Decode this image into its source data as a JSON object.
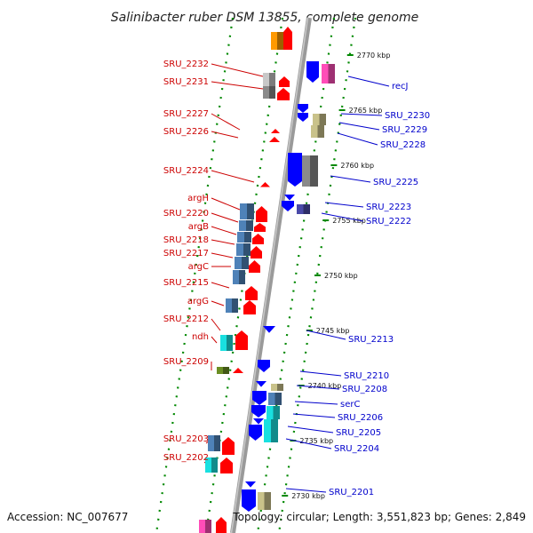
{
  "header": {
    "title": "Salinibacter ruber DSM 13855, complete genome"
  },
  "footer": {
    "accession": "Accession: NC_007677",
    "summary": "Topology: circular; Length: 3,551,823 bp; Genes: 2,849"
  },
  "colors": {
    "forward_label": "#cc0000",
    "reverse_label": "#0000cc",
    "backbone": "#999999",
    "tick": "#008800"
  },
  "kbp_markers": [
    {
      "text": "2770 kbp",
      "kbp": 2770
    },
    {
      "text": "2765 kbp",
      "kbp": 2765
    },
    {
      "text": "2760 kbp",
      "kbp": 2760
    },
    {
      "text": "2755 kbp",
      "kbp": 2755
    },
    {
      "text": "2750 kbp",
      "kbp": 2750
    },
    {
      "text": "2745 kbp",
      "kbp": 2745
    },
    {
      "text": "2740 kbp",
      "kbp": 2740
    },
    {
      "text": "2735 kbp",
      "kbp": 2735
    },
    {
      "text": "2730 kbp",
      "kbp": 2730
    }
  ],
  "forward_genes": [
    {
      "label": "SRU_2232"
    },
    {
      "label": "SRU_2231"
    },
    {
      "label": "SRU_2227"
    },
    {
      "label": "SRU_2226"
    },
    {
      "label": "SRU_2224"
    },
    {
      "label": "argH"
    },
    {
      "label": "SRU_2220"
    },
    {
      "label": "argB"
    },
    {
      "label": "SRU_2218"
    },
    {
      "label": "SRU_2217"
    },
    {
      "label": "argC"
    },
    {
      "label": "SRU_2215"
    },
    {
      "label": "argG"
    },
    {
      "label": "SRU_2212"
    },
    {
      "label": "ndh"
    },
    {
      "label": "SRU_2209"
    },
    {
      "label": "SRU_2203"
    },
    {
      "label": "SRU_2202"
    }
  ],
  "reverse_genes": [
    {
      "label": "recJ"
    },
    {
      "label": "SRU_2230"
    },
    {
      "label": "SRU_2229"
    },
    {
      "label": "SRU_2228"
    },
    {
      "label": "SRU_2225"
    },
    {
      "label": "SRU_2223"
    },
    {
      "label": "SRU_2222"
    },
    {
      "label": "SRU_2213"
    },
    {
      "label": "SRU_2210"
    },
    {
      "label": "SRU_2208"
    },
    {
      "label": "serC"
    },
    {
      "label": "SRU_2206"
    },
    {
      "label": "SRU_2205"
    },
    {
      "label": "SRU_2204"
    },
    {
      "label": "SRU_2201"
    }
  ]
}
